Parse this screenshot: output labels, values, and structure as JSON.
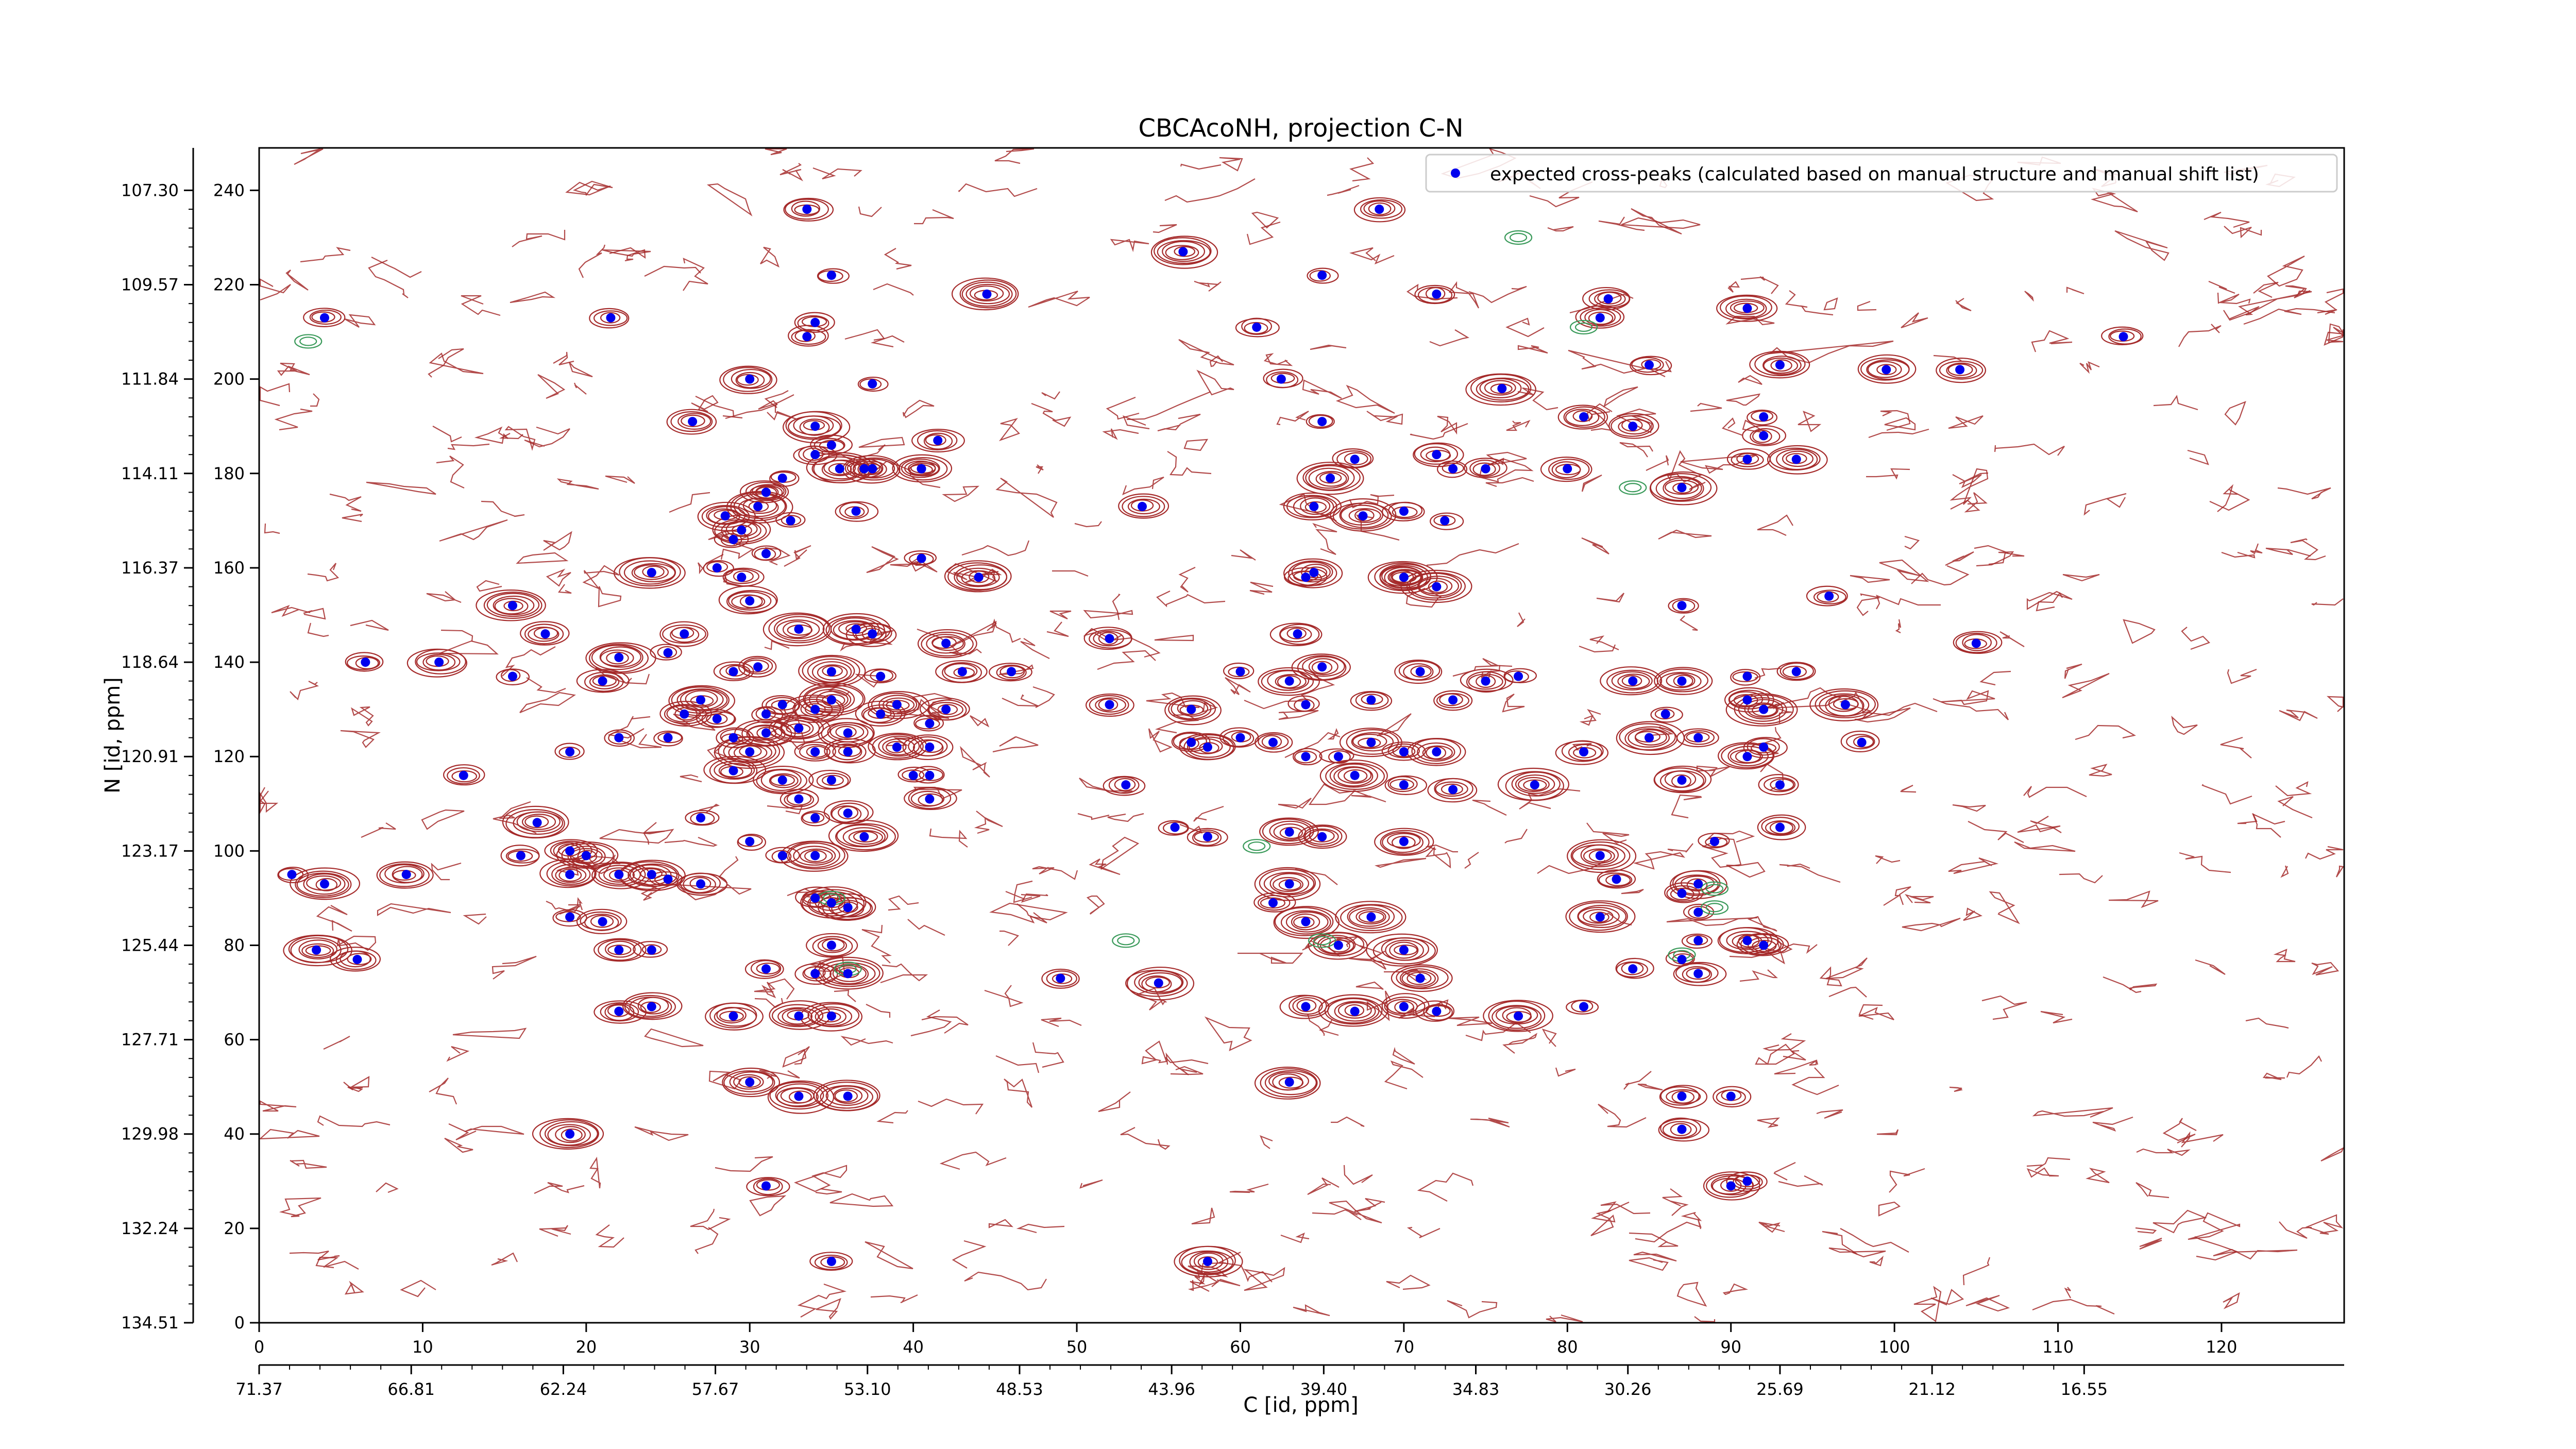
{
  "chart_data": {
    "type": "scatter",
    "title": "CBCAcoNH, projection C-N",
    "xlabel": "C [id, ppm]",
    "ylabel": "N [id, ppm]",
    "xlim": [
      0,
      127.5
    ],
    "ylim": [
      0,
      249
    ],
    "x_ticks": [
      0,
      10,
      20,
      30,
      40,
      50,
      60,
      70,
      80,
      90,
      100,
      110,
      120
    ],
    "y_ticks": [
      0,
      20,
      40,
      60,
      80,
      100,
      120,
      140,
      160,
      180,
      200,
      220,
      240
    ],
    "x_ppm_tick_positions": [
      0,
      9.3,
      18.6,
      27.9,
      37.2,
      46.5,
      55.8,
      65.1,
      74.4,
      83.7,
      93.0,
      102.3,
      111.6
    ],
    "x_ppm_tick_labels": [
      "71.37",
      "66.81",
      "62.24",
      "57.67",
      "53.10",
      "48.53",
      "43.96",
      "39.40",
      "34.83",
      "30.26",
      "25.69",
      "21.12",
      "16.55"
    ],
    "y_ppm_tick_labels": [
      "134.51",
      "132.24",
      "129.98",
      "127.71",
      "125.44",
      "123.17",
      "120.91",
      "118.64",
      "116.37",
      "114.11",
      "111.84",
      "109.57",
      "107.30"
    ],
    "grid": false,
    "legend_position": "top-right",
    "colors": {
      "peak_marker": "#0000ee",
      "positive_contour": "#a52a2a",
      "negative_contour": "#3a9a5a"
    },
    "series": [
      {
        "name": "expected cross-peaks (calculated based on manual structure and manual shift list)",
        "points": [
          [
            33.5,
            236
          ],
          [
            68.5,
            236
          ],
          [
            56.5,
            227
          ],
          [
            35,
            222
          ],
          [
            65,
            222
          ],
          [
            44.5,
            218
          ],
          [
            72,
            218
          ],
          [
            4,
            213
          ],
          [
            21.5,
            213
          ],
          [
            61,
            211
          ],
          [
            34,
            212
          ],
          [
            82,
            213
          ],
          [
            33.5,
            209
          ],
          [
            114,
            209
          ],
          [
            91,
            215
          ],
          [
            82.5,
            217
          ],
          [
            99.5,
            202
          ],
          [
            30,
            200
          ],
          [
            62.5,
            200
          ],
          [
            37.5,
            199
          ],
          [
            76,
            198
          ],
          [
            93,
            203
          ],
          [
            85,
            203
          ],
          [
            26.5,
            191
          ],
          [
            34,
            190
          ],
          [
            65,
            191
          ],
          [
            81,
            192
          ],
          [
            35,
            186
          ],
          [
            92,
            192
          ],
          [
            104,
            202
          ],
          [
            41.5,
            187
          ],
          [
            84,
            190
          ],
          [
            67,
            183
          ],
          [
            72,
            184
          ],
          [
            34,
            184
          ],
          [
            32,
            179
          ],
          [
            31,
            176
          ],
          [
            30.5,
            173
          ],
          [
            35.5,
            181
          ],
          [
            37,
            181
          ],
          [
            40.5,
            181
          ],
          [
            65.5,
            179
          ],
          [
            73,
            181
          ],
          [
            80,
            181
          ],
          [
            75,
            181
          ],
          [
            91,
            183
          ],
          [
            94,
            183
          ],
          [
            92,
            188
          ],
          [
            87,
            177
          ],
          [
            31,
            176
          ],
          [
            37.5,
            181
          ],
          [
            40.5,
            181
          ],
          [
            28.5,
            171
          ],
          [
            29.5,
            168
          ],
          [
            32.5,
            170
          ],
          [
            29,
            166
          ],
          [
            36.5,
            172
          ],
          [
            54,
            173
          ],
          [
            64.5,
            173
          ],
          [
            67.5,
            171
          ],
          [
            70,
            172
          ],
          [
            72.5,
            170
          ],
          [
            28,
            160
          ],
          [
            31,
            163
          ],
          [
            40.5,
            162
          ],
          [
            24,
            159
          ],
          [
            44,
            158
          ],
          [
            29.5,
            158
          ],
          [
            64,
            158
          ],
          [
            70,
            158
          ],
          [
            64.5,
            159
          ],
          [
            72,
            156
          ],
          [
            70,
            158
          ],
          [
            15.5,
            152
          ],
          [
            30,
            153
          ],
          [
            33,
            147
          ],
          [
            36.5,
            147
          ],
          [
            37.5,
            146
          ],
          [
            42,
            144
          ],
          [
            52,
            145
          ],
          [
            63.5,
            146
          ],
          [
            87,
            152
          ],
          [
            96,
            154
          ],
          [
            105,
            144
          ],
          [
            17.5,
            146
          ],
          [
            26,
            146
          ],
          [
            6.5,
            140
          ],
          [
            11,
            140
          ],
          [
            22,
            141
          ],
          [
            25,
            142
          ],
          [
            15.5,
            137
          ],
          [
            21,
            136
          ],
          [
            29,
            138
          ],
          [
            30.5,
            139
          ],
          [
            35,
            138
          ],
          [
            38,
            137
          ],
          [
            43,
            138
          ],
          [
            46,
            138
          ],
          [
            60,
            138
          ],
          [
            63,
            136
          ],
          [
            65,
            139
          ],
          [
            71,
            138
          ],
          [
            75,
            136
          ],
          [
            77,
            137
          ],
          [
            84,
            136
          ],
          [
            87,
            136
          ],
          [
            91,
            137
          ],
          [
            94,
            138
          ],
          [
            27,
            132
          ],
          [
            32,
            131
          ],
          [
            35,
            132
          ],
          [
            39,
            131
          ],
          [
            42,
            130
          ],
          [
            52,
            131
          ],
          [
            57,
            130
          ],
          [
            64,
            131
          ],
          [
            68,
            132
          ],
          [
            73,
            132
          ],
          [
            86,
            129
          ],
          [
            91,
            132
          ],
          [
            92,
            130
          ],
          [
            97,
            131
          ],
          [
            26,
            129
          ],
          [
            28,
            128
          ],
          [
            31,
            129
          ],
          [
            34,
            130
          ],
          [
            38,
            129
          ],
          [
            41,
            127
          ],
          [
            29,
            124
          ],
          [
            31,
            125
          ],
          [
            33,
            126
          ],
          [
            36,
            125
          ],
          [
            25,
            124
          ],
          [
            22,
            124
          ],
          [
            19,
            121
          ],
          [
            30,
            121
          ],
          [
            34,
            121
          ],
          [
            36,
            121
          ],
          [
            39,
            122
          ],
          [
            41,
            122
          ],
          [
            57,
            123
          ],
          [
            60,
            124
          ],
          [
            58,
            122
          ],
          [
            62,
            123
          ],
          [
            64,
            120
          ],
          [
            66,
            120
          ],
          [
            68,
            123
          ],
          [
            70,
            121
          ],
          [
            72,
            121
          ],
          [
            81,
            121
          ],
          [
            85,
            124
          ],
          [
            88,
            124
          ],
          [
            91,
            120
          ],
          [
            92,
            122
          ],
          [
            98,
            123
          ],
          [
            12.5,
            116
          ],
          [
            29,
            117
          ],
          [
            32,
            115
          ],
          [
            35,
            115
          ],
          [
            40,
            116
          ],
          [
            41,
            116
          ],
          [
            53,
            114
          ],
          [
            67,
            116
          ],
          [
            70,
            114
          ],
          [
            73,
            113
          ],
          [
            78,
            114
          ],
          [
            87,
            115
          ],
          [
            93,
            114
          ],
          [
            41,
            111
          ],
          [
            17,
            106
          ],
          [
            27,
            107
          ],
          [
            33,
            111
          ],
          [
            34,
            107
          ],
          [
            36,
            108
          ],
          [
            37,
            103
          ],
          [
            30,
            102
          ],
          [
            32,
            99
          ],
          [
            34,
            99
          ],
          [
            56,
            105
          ],
          [
            58,
            103
          ],
          [
            63,
            104
          ],
          [
            65,
            103
          ],
          [
            70,
            102
          ],
          [
            82,
            99
          ],
          [
            89,
            102
          ],
          [
            93,
            105
          ],
          [
            9,
            95
          ],
          [
            19,
            95
          ],
          [
            19,
            100
          ],
          [
            16,
            99
          ],
          [
            20,
            99
          ],
          [
            22,
            95
          ],
          [
            25,
            94
          ],
          [
            27,
            93
          ],
          [
            34,
            90
          ],
          [
            35,
            89
          ],
          [
            36,
            88
          ],
          [
            63,
            93
          ],
          [
            83,
            94
          ],
          [
            87,
            91
          ],
          [
            88,
            93
          ],
          [
            4,
            93
          ],
          [
            19,
            86
          ],
          [
            21,
            85
          ],
          [
            2,
            95
          ],
          [
            24,
            95
          ],
          [
            62,
            89
          ],
          [
            64,
            85
          ],
          [
            68,
            86
          ],
          [
            82,
            86
          ],
          [
            88,
            87
          ],
          [
            3.5,
            79
          ],
          [
            22,
            79
          ],
          [
            24,
            79
          ],
          [
            35,
            80
          ],
          [
            66,
            80
          ],
          [
            70,
            79
          ],
          [
            88,
            81
          ],
          [
            91,
            81
          ],
          [
            92,
            80
          ],
          [
            6,
            77
          ],
          [
            31,
            75
          ],
          [
            34,
            74
          ],
          [
            36,
            74
          ],
          [
            49,
            73
          ],
          [
            71,
            73
          ],
          [
            55,
            72
          ],
          [
            84,
            75
          ],
          [
            88,
            74
          ],
          [
            87,
            77
          ],
          [
            22,
            66
          ],
          [
            24,
            67
          ],
          [
            29,
            65
          ],
          [
            33,
            65
          ],
          [
            35,
            65
          ],
          [
            64,
            67
          ],
          [
            67,
            66
          ],
          [
            70,
            67
          ],
          [
            72,
            66
          ],
          [
            77,
            65
          ],
          [
            81,
            67
          ],
          [
            30,
            51
          ],
          [
            33,
            48
          ],
          [
            36,
            48
          ],
          [
            63,
            51
          ],
          [
            87,
            48
          ],
          [
            90,
            48
          ],
          [
            19,
            40
          ],
          [
            87,
            41
          ],
          [
            31,
            29
          ],
          [
            90,
            29
          ],
          [
            35,
            13
          ],
          [
            58,
            13
          ],
          [
            91,
            30
          ]
        ]
      }
    ]
  }
}
